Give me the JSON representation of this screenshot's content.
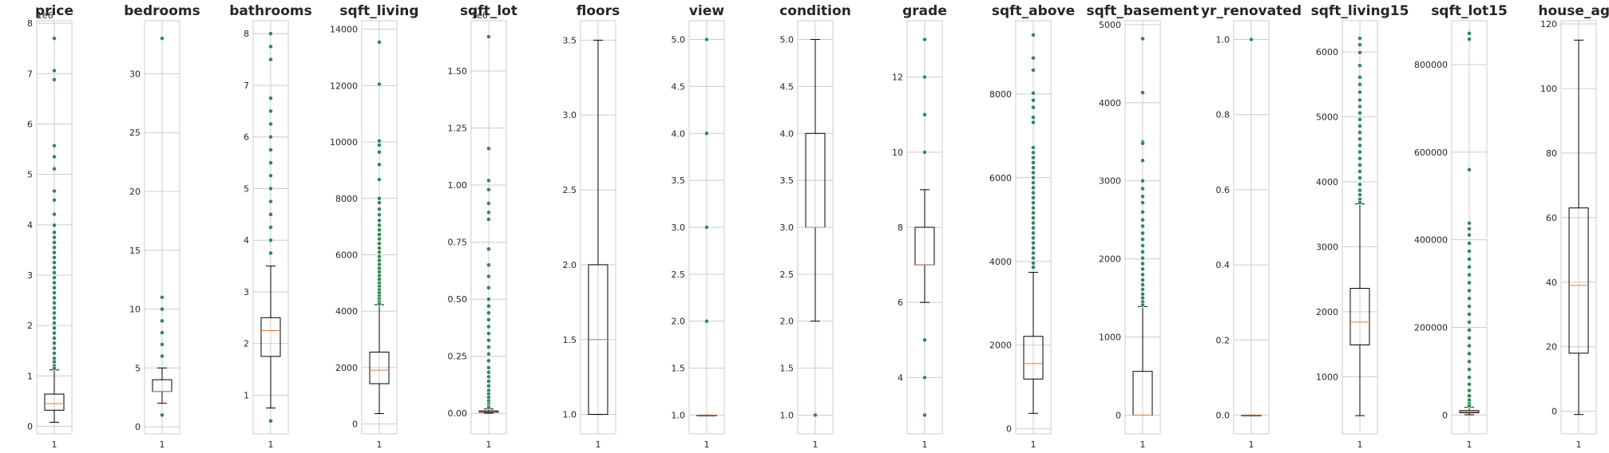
{
  "figure": {
    "background": "#ffffff"
  },
  "style": {
    "grid_color": "#cccccc",
    "spine_color": "#cccccc",
    "box_color": "#000000",
    "median_color": "#e07b39",
    "flier_color": "#2e8b57"
  },
  "chart_data": [
    {
      "type": "box",
      "title": "price",
      "categories": [
        "1"
      ],
      "offset_label": "1e6",
      "ylim": [
        -0.15,
        8.05
      ],
      "yticks": [
        0,
        1,
        2,
        3,
        4,
        5,
        6,
        7,
        8
      ],
      "ytick_labels": [
        "0",
        "1",
        "2",
        "3",
        "4",
        "5",
        "6",
        "7",
        "8"
      ],
      "box": {
        "whislo": 0.08,
        "q1": 0.32,
        "med": 0.45,
        "q3": 0.64,
        "whishi": 1.12
      },
      "fliers": [
        7.7,
        7.06,
        6.88,
        5.57,
        5.35,
        5.11,
        4.67,
        4.49,
        4.21,
        3.99,
        3.85,
        3.75,
        3.65,
        3.55,
        3.45,
        3.35,
        3.25,
        3.15,
        3.05,
        2.95,
        2.85,
        2.75,
        2.65,
        2.55,
        2.45,
        2.35,
        2.25,
        2.15,
        2.05,
        1.95,
        1.85,
        1.75,
        1.65,
        1.55,
        1.45,
        1.35,
        1.28,
        1.2,
        1.15
      ]
    },
    {
      "type": "box",
      "title": "bedrooms",
      "categories": [
        "1"
      ],
      "ylim": [
        -0.6,
        34.5
      ],
      "yticks": [
        0,
        5,
        10,
        15,
        20,
        25,
        30
      ],
      "ytick_labels": [
        "0",
        "5",
        "10",
        "15",
        "20",
        "25",
        "30"
      ],
      "box": {
        "whislo": 2,
        "q1": 3,
        "med": 3,
        "q3": 4,
        "whishi": 5
      },
      "fliers": [
        33,
        11,
        10,
        9,
        8,
        7,
        6,
        1
      ]
    },
    {
      "type": "box",
      "title": "bathrooms",
      "categories": [
        "1"
      ],
      "ylim": [
        0.25,
        8.25
      ],
      "yticks": [
        1,
        2,
        3,
        4,
        5,
        6,
        7,
        8
      ],
      "ytick_labels": [
        "1",
        "2",
        "3",
        "4",
        "5",
        "6",
        "7",
        "8"
      ],
      "box": {
        "whislo": 0.75,
        "q1": 1.75,
        "med": 2.25,
        "q3": 2.5,
        "whishi": 3.5
      },
      "fliers": [
        8,
        7.75,
        7.5,
        6.75,
        6.5,
        6.25,
        6,
        5.75,
        5.5,
        5.25,
        5,
        4.75,
        4.5,
        4.25,
        4,
        3.75,
        0.5
      ]
    },
    {
      "type": "box",
      "title": "sqft_living",
      "categories": [
        "1"
      ],
      "ylim": [
        -350,
        14300
      ],
      "yticks": [
        0,
        2000,
        4000,
        6000,
        8000,
        10000,
        12000,
        14000
      ],
      "ytick_labels": [
        "0",
        "2000",
        "4000",
        "6000",
        "8000",
        "10000",
        "12000",
        "14000"
      ],
      "box": {
        "whislo": 370,
        "q1": 1430,
        "med": 1910,
        "q3": 2550,
        "whishi": 4230
      },
      "fliers": [
        13540,
        12050,
        10040,
        9890,
        9640,
        9200,
        8670,
        8000,
        7850,
        7620,
        7420,
        7220,
        7050,
        6880,
        6720,
        6560,
        6400,
        6240,
        6090,
        5940,
        5800,
        5660,
        5520,
        5390,
        5260,
        5130,
        5000,
        4880,
        4760,
        4650,
        4540,
        4440,
        4340,
        4260
      ]
    },
    {
      "type": "box",
      "title": "sqft_lot",
      "categories": [
        "1"
      ],
      "offset_label": "1e6",
      "ylim": [
        -0.09,
        1.72
      ],
      "yticks": [
        0,
        0.25,
        0.5,
        0.75,
        1.0,
        1.25,
        1.5
      ],
      "ytick_labels": [
        "0.00",
        "0.25",
        "0.50",
        "0.75",
        "1.00",
        "1.25",
        "1.50"
      ],
      "box": {
        "whislo": 0.0005,
        "q1": 0.005,
        "med": 0.0076,
        "q3": 0.0107,
        "whishi": 0.019
      },
      "fliers": [
        1.65,
        1.16,
        1.02,
        0.98,
        0.92,
        0.88,
        0.85,
        0.72,
        0.65,
        0.6,
        0.55,
        0.5,
        0.47,
        0.44,
        0.41,
        0.38,
        0.35,
        0.32,
        0.29,
        0.26,
        0.23,
        0.2,
        0.18,
        0.16,
        0.14,
        0.12,
        0.1,
        0.085,
        0.07,
        0.055,
        0.042,
        0.032,
        0.025
      ]
    },
    {
      "type": "box",
      "title": "floors",
      "categories": [
        "1"
      ],
      "ylim": [
        0.87,
        3.63
      ],
      "yticks": [
        1.0,
        1.5,
        2.0,
        2.5,
        3.0,
        3.5
      ],
      "ytick_labels": [
        "1.0",
        "1.5",
        "2.0",
        "2.5",
        "3.0",
        "3.5"
      ],
      "box": {
        "whislo": 1.0,
        "q1": 1.0,
        "med": 1.5,
        "q3": 2.0,
        "whishi": 3.5
      },
      "fliers": []
    },
    {
      "type": "box",
      "title": "view",
      "categories": [
        "1"
      ],
      "ylim": [
        0.8,
        5.2
      ],
      "yticks": [
        1.0,
        1.5,
        2.0,
        2.5,
        3.0,
        3.5,
        4.0,
        4.5,
        5.0
      ],
      "ytick_labels": [
        "1.0",
        "1.5",
        "2.0",
        "2.5",
        "3.0",
        "3.5",
        "4.0",
        "4.5",
        "5.0"
      ],
      "box": {
        "whislo": 1.0,
        "q1": 1.0,
        "med": 1.0,
        "q3": 1.0,
        "whishi": 1.0
      },
      "fliers": [
        5.0,
        4.0,
        3.0,
        2.0
      ]
    },
    {
      "type": "box",
      "title": "condition",
      "categories": [
        "1"
      ],
      "ylim": [
        0.8,
        5.2
      ],
      "yticks": [
        1.0,
        1.5,
        2.0,
        2.5,
        3.0,
        3.5,
        4.0,
        4.5,
        5.0
      ],
      "ytick_labels": [
        "1.0",
        "1.5",
        "2.0",
        "2.5",
        "3.0",
        "3.5",
        "4.0",
        "4.5",
        "5.0"
      ],
      "box": {
        "whislo": 2.0,
        "q1": 3.0,
        "med": 3.0,
        "q3": 4.0,
        "whishi": 5.0
      },
      "fliers": [
        1.0
      ]
    },
    {
      "type": "box",
      "title": "grade",
      "categories": [
        "1"
      ],
      "ylim": [
        2.5,
        13.5
      ],
      "yticks": [
        4,
        6,
        8,
        10,
        12
      ],
      "ytick_labels": [
        "4",
        "6",
        "8",
        "10",
        "12"
      ],
      "box": {
        "whislo": 6,
        "q1": 7,
        "med": 7,
        "q3": 8,
        "whishi": 9
      },
      "fliers": [
        13,
        12,
        11,
        10,
        5,
        4,
        3
      ]
    },
    {
      "type": "box",
      "title": "sqft_above",
      "categories": [
        "1"
      ],
      "ylim": [
        -120,
        9750
      ],
      "yticks": [
        0,
        2000,
        4000,
        6000,
        8000
      ],
      "ytick_labels": [
        "0",
        "2000",
        "4000",
        "6000",
        "8000"
      ],
      "box": {
        "whislo": 370,
        "q1": 1190,
        "med": 1560,
        "q3": 2210,
        "whishi": 3740
      },
      "fliers": [
        9410,
        8860,
        8570,
        8020,
        7850,
        7680,
        7440,
        7320,
        6720,
        6600,
        6480,
        6360,
        6240,
        6120,
        6000,
        5880,
        5760,
        5640,
        5520,
        5400,
        5280,
        5160,
        5040,
        4920,
        4800,
        4680,
        4560,
        4440,
        4320,
        4200,
        4080,
        3960,
        3860
      ]
    },
    {
      "type": "box",
      "title": "sqft_basement",
      "categories": [
        "1"
      ],
      "ylim": [
        -240,
        5050
      ],
      "yticks": [
        0,
        1000,
        2000,
        3000,
        4000,
        5000
      ],
      "ytick_labels": [
        "0",
        "1000",
        "2000",
        "3000",
        "4000",
        "5000"
      ],
      "box": {
        "whislo": 0,
        "q1": 0,
        "med": 0,
        "q3": 560,
        "whishi": 1390
      },
      "fliers": [
        4820,
        4130,
        3500,
        3480,
        3260,
        3000,
        2900,
        2800,
        2720,
        2600,
        2500,
        2420,
        2330,
        2250,
        2170,
        2090,
        2010,
        1940,
        1870,
        1800,
        1730,
        1670,
        1610,
        1550,
        1500,
        1450,
        1410
      ]
    },
    {
      "type": "box",
      "title": "yr_renovated",
      "categories": [
        "1"
      ],
      "ylim": [
        -0.05,
        1.05
      ],
      "yticks": [
        0.0,
        0.2,
        0.4,
        0.6,
        0.8,
        1.0
      ],
      "ytick_labels": [
        "0.0",
        "0.2",
        "0.4",
        "0.6",
        "0.8",
        "1.0"
      ],
      "box": {
        "whislo": 0,
        "q1": 0,
        "med": 0,
        "q3": 0,
        "whishi": 0
      },
      "fliers": [
        1.0
      ]
    },
    {
      "type": "box",
      "title": "sqft_living15",
      "categories": [
        "1"
      ],
      "ylim": [
        120,
        6480
      ],
      "yticks": [
        1000,
        2000,
        3000,
        4000,
        5000,
        6000
      ],
      "ytick_labels": [
        "1000",
        "2000",
        "3000",
        "4000",
        "5000",
        "6000"
      ],
      "box": {
        "whislo": 400,
        "q1": 1490,
        "med": 1840,
        "q3": 2360,
        "whishi": 3660
      },
      "fliers": [
        6210,
        6110,
        5990,
        5790,
        5610,
        5500,
        5380,
        5260,
        5160,
        5060,
        4960,
        4860,
        4760,
        4660,
        4560,
        4460,
        4360,
        4260,
        4160,
        4060,
        3960,
        3870,
        3800,
        3730,
        3680
      ]
    },
    {
      "type": "box",
      "title": "sqft_lot15",
      "categories": [
        "1"
      ],
      "ylim": [
        -43000,
        900000
      ],
      "yticks": [
        0,
        200000,
        400000,
        600000,
        800000
      ],
      "ytick_labels": [
        "0",
        "200000",
        "400000",
        "600000",
        "800000"
      ],
      "box": {
        "whislo": 650,
        "q1": 5100,
        "med": 7620,
        "q3": 10080,
        "whishi": 17500
      },
      "fliers": [
        871200,
        858000,
        560000,
        438000,
        425000,
        411000,
        392000,
        374000,
        356000,
        338000,
        320000,
        302000,
        284000,
        266000,
        248000,
        230000,
        212000,
        194000,
        176000,
        158000,
        140000,
        122000,
        104000,
        86000,
        70000,
        56000,
        44000,
        34000,
        26000,
        21000
      ]
    },
    {
      "type": "box",
      "title": "house_age",
      "categories": [
        "1"
      ],
      "ylim": [
        -7,
        121
      ],
      "yticks": [
        0,
        20,
        40,
        60,
        80,
        100,
        120
      ],
      "ytick_labels": [
        "0",
        "20",
        "40",
        "60",
        "80",
        "100",
        "120"
      ],
      "box": {
        "whislo": -1,
        "q1": 18,
        "med": 39,
        "q3": 63,
        "whishi": 115
      },
      "fliers": []
    }
  ]
}
